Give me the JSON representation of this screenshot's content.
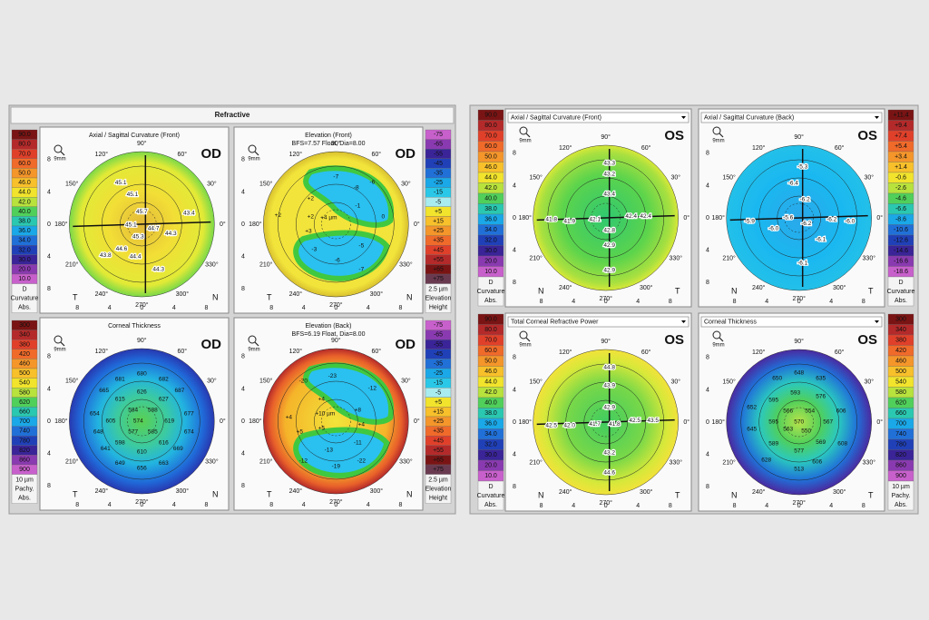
{
  "compass": [
    "90°",
    "60°",
    "30°",
    "0°",
    "330°",
    "300°",
    "270°",
    "240°",
    "210°",
    "180°",
    "150°",
    "120°"
  ],
  "axis_ticks": [
    "8",
    "4",
    "0",
    "4",
    "8"
  ],
  "od": {
    "header": "Refractive",
    "scales": [
      {
        "labels": [
          "90.0",
          "80.0",
          "70.0",
          "60.0",
          "50.0",
          "46.0",
          "44.0",
          "42.0",
          "40.0",
          "38.0",
          "36.0",
          "34.0",
          "32.0",
          "30.0",
          "20.0",
          "10.0"
        ],
        "colors": [
          "#7a1414",
          "#b42a2a",
          "#e0402a",
          "#f06a2a",
          "#f5962a",
          "#f8c02a",
          "#f2e42c",
          "#b8e23c",
          "#50d05a",
          "#2ac8b0",
          "#1aa8e8",
          "#2070d8",
          "#2040b8",
          "#3a2498",
          "#8a3ab0",
          "#c860cc"
        ],
        "footer": [
          "D",
          "Curvature",
          "Abs."
        ]
      },
      {
        "labels": [
          "-75",
          "-65",
          "-55",
          "-45",
          "-35",
          "-25",
          "-15",
          "-5",
          "+5",
          "+15",
          "+25",
          "+35",
          "+45",
          "+55",
          "+65",
          "+75"
        ],
        "colors": [
          "#c860cc",
          "#8a3ab0",
          "#3a2498",
          "#2040b8",
          "#2070d8",
          "#1aa8e8",
          "#2ac8e8",
          "#a8ecf0",
          "#f2e42c",
          "#f8c02a",
          "#f5962a",
          "#f06a2a",
          "#e0402a",
          "#b42a2a",
          "#7a1414",
          "#6a3a50"
        ],
        "footer": [
          "2.5 µm",
          "Elevation",
          "Height"
        ]
      },
      {
        "labels": [
          "300",
          "340",
          "380",
          "420",
          "460",
          "500",
          "540",
          "580",
          "620",
          "660",
          "700",
          "740",
          "780",
          "820",
          "860",
          "900"
        ],
        "colors": [
          "#7a1414",
          "#b42a2a",
          "#e0402a",
          "#f06a2a",
          "#f5962a",
          "#f8c02a",
          "#f2e42c",
          "#b8e23c",
          "#50d05a",
          "#2ac8b0",
          "#1aa8e8",
          "#2070d8",
          "#2040b8",
          "#3a2498",
          "#8a3ab0",
          "#c860cc"
        ],
        "footer": [
          "10 µm",
          "Pachy.",
          "Abs."
        ]
      },
      {
        "labels": [
          "-75",
          "-65",
          "-55",
          "-45",
          "-35",
          "-25",
          "-15",
          "-5",
          "+5",
          "+15",
          "+25",
          "+35",
          "+45",
          "+55",
          "+65",
          "+75"
        ],
        "colors": [
          "#c860cc",
          "#8a3ab0",
          "#3a2498",
          "#2040b8",
          "#2070d8",
          "#1aa8e8",
          "#2ac8e8",
          "#a8ecf0",
          "#f2e42c",
          "#f8c02a",
          "#f5962a",
          "#f06a2a",
          "#e0402a",
          "#b42a2a",
          "#7a1414",
          "#6a3a50"
        ],
        "footer": [
          "2.5 µm",
          "Elevation",
          "Height"
        ]
      }
    ],
    "maps": [
      {
        "title": "Axial / Sagittal Curvature (Front)",
        "eye": "OD",
        "zoom": "9mm",
        "sides": [
          "T",
          "N"
        ],
        "labels": [
          "45.1",
          "45.1",
          "45.7",
          "45.1",
          "44.7",
          "45.3",
          "44.3",
          "43.4",
          "43.8",
          "44.6",
          "44.4",
          "44.3"
        ]
      },
      {
        "title": "Elevation (Front)",
        "subtitle": "BFS=7.57 Float, Dia=8.00",
        "eye": "OD",
        "zoom": "9mm",
        "sides": [
          "T",
          "N"
        ],
        "labels": [
          "+4 µm",
          "-7",
          "-8",
          "-6",
          "+2",
          "+2",
          "+2",
          "-1",
          "0",
          "+3",
          "-3",
          "-6",
          "-5",
          "-7"
        ]
      },
      {
        "title": "Corneal Thickness",
        "eye": "OD",
        "zoom": "9mm",
        "sides": [
          "T",
          "N"
        ],
        "labels": [
          "681",
          "680",
          "682",
          "665",
          "687",
          "654",
          "615",
          "626",
          "627",
          "677",
          "605",
          "584",
          "588",
          "619",
          "648",
          "574",
          "577",
          "585",
          "674",
          "598",
          "616",
          "641",
          "610",
          "669",
          "649",
          "656",
          "663"
        ]
      },
      {
        "title": "Elevation (Back)",
        "subtitle": "BFS=6.19 Float, Dia=8.00",
        "eye": "OD",
        "zoom": "9mm",
        "sides": [
          "T",
          "N"
        ],
        "labels": [
          "+10 µm",
          "-20",
          "-23",
          "-12",
          "+4",
          "+4",
          "+8",
          "+5",
          "+5",
          "+4",
          "-13",
          "-11",
          "-12",
          "-19",
          "-22"
        ]
      }
    ]
  },
  "os": {
    "scales": [
      {
        "labels": [
          "90.0",
          "80.0",
          "70.0",
          "60.0",
          "50.0",
          "46.0",
          "44.0",
          "42.0",
          "40.0",
          "38.0",
          "36.0",
          "34.0",
          "32.0",
          "30.0",
          "20.0",
          "10.0"
        ],
        "colors": [
          "#7a1414",
          "#b42a2a",
          "#e0402a",
          "#f06a2a",
          "#f5962a",
          "#f8c02a",
          "#f2e42c",
          "#b8e23c",
          "#50d05a",
          "#2ac8b0",
          "#1aa8e8",
          "#2070d8",
          "#2040b8",
          "#3a2498",
          "#8a3ab0",
          "#c860cc"
        ],
        "footer": [
          "D",
          "Curvature",
          "Abs."
        ]
      },
      {
        "labels": [
          "+11.4",
          "+9.4",
          "+7.4",
          "+5.4",
          "+3.4",
          "+1.4",
          "-0.6",
          "-2.6",
          "-4.6",
          "-6.6",
          "-8.6",
          "-10.6",
          "-12.6",
          "-14.6",
          "-16.6",
          "-18.6"
        ],
        "colors": [
          "#7a1414",
          "#b42a2a",
          "#e0402a",
          "#f06a2a",
          "#f5962a",
          "#f8c02a",
          "#f2e42c",
          "#b8e23c",
          "#50d05a",
          "#2ac8b0",
          "#1aa8e8",
          "#2070d8",
          "#2040b8",
          "#3a2498",
          "#8a3ab0",
          "#c860cc"
        ],
        "footer": [
          "D",
          "Curvature",
          "Abs."
        ]
      },
      {
        "labels": [
          "90.0",
          "80.0",
          "70.0",
          "60.0",
          "50.0",
          "46.0",
          "44.0",
          "42.0",
          "40.0",
          "38.0",
          "36.0",
          "34.0",
          "32.0",
          "30.0",
          "20.0",
          "10.0"
        ],
        "colors": [
          "#7a1414",
          "#b42a2a",
          "#e0402a",
          "#f06a2a",
          "#f5962a",
          "#f8c02a",
          "#f2e42c",
          "#b8e23c",
          "#50d05a",
          "#2ac8b0",
          "#1aa8e8",
          "#2070d8",
          "#2040b8",
          "#3a2498",
          "#8a3ab0",
          "#c860cc"
        ],
        "footer": [
          "D",
          "Curvature",
          "Abs."
        ]
      },
      {
        "labels": [
          "300",
          "340",
          "380",
          "420",
          "460",
          "500",
          "540",
          "580",
          "620",
          "660",
          "700",
          "740",
          "780",
          "820",
          "860",
          "900"
        ],
        "colors": [
          "#7a1414",
          "#b42a2a",
          "#e0402a",
          "#f06a2a",
          "#f5962a",
          "#f8c02a",
          "#f2e42c",
          "#b8e23c",
          "#50d05a",
          "#2ac8b0",
          "#1aa8e8",
          "#2070d8",
          "#2040b8",
          "#3a2498",
          "#8a3ab0",
          "#c860cc"
        ],
        "footer": [
          "10 µm",
          "Pachy.",
          "Abs."
        ]
      }
    ],
    "maps": [
      {
        "title": "Axial / Sagittal Curvature (Front)",
        "eye": "OS",
        "zoom": "9mm",
        "sides": [
          "N",
          "T"
        ],
        "labels": [
          "43.3",
          "43.2",
          "43.4",
          "41.8",
          "41.9",
          "42.1",
          "42.4",
          "42.4",
          "42.8",
          "42.9",
          "42.9"
        ]
      },
      {
        "title": "Axial / Sagittal Curvature (Back)",
        "eye": "OS",
        "zoom": "9mm",
        "sides": [
          "N",
          "T"
        ],
        "labels": [
          "-5.3",
          "-6.4",
          "-6.2",
          "-5.9",
          "-6.0",
          "-5.6",
          "-6.2",
          "-6.2",
          "-6.0",
          "-6.1",
          "-6.1"
        ]
      },
      {
        "title": "Total Corneal Refractive Power",
        "eye": "OS",
        "zoom": "9mm",
        "sides": [
          "N",
          "T"
        ],
        "labels": [
          "44.8",
          "43.9",
          "42.9",
          "42.5",
          "42.0",
          "41.7",
          "41.8",
          "42.5",
          "43.5",
          "43.2",
          "44.6"
        ]
      },
      {
        "title": "Corneal Thickness",
        "eye": "OS",
        "zoom": "9mm",
        "sides": [
          "N",
          "T"
        ],
        "labels": [
          "648",
          "650",
          "635",
          "593",
          "576",
          "595",
          "652",
          "566",
          "554",
          "606",
          "595",
          "570",
          "645",
          "563",
          "550",
          "567",
          "589",
          "569",
          "608",
          "628",
          "577",
          "513",
          "606"
        ]
      }
    ]
  }
}
